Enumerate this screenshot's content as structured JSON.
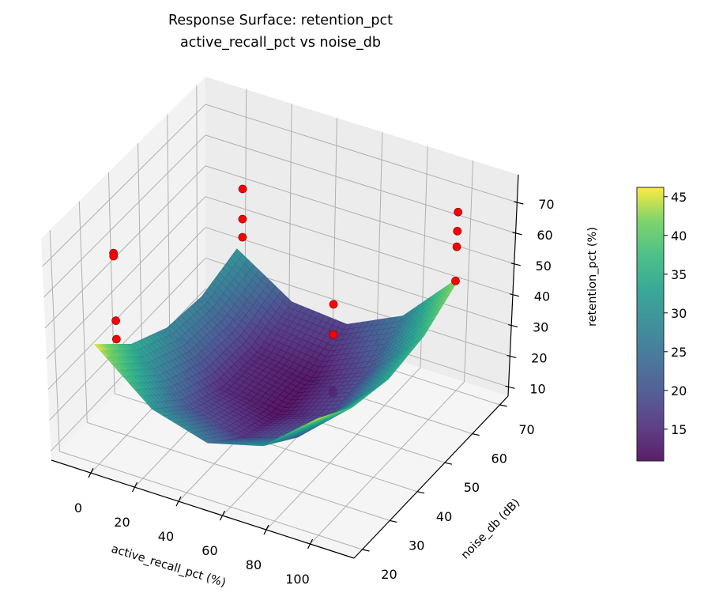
{
  "chart_data": {
    "type": "surface3d",
    "title": [
      "Response Surface: retention_pct",
      "active_recall_pct vs noise_db"
    ],
    "xlabel": "active_recall_pct (%)",
    "ylabel": "noise_db (dB)",
    "zlabel": "retention_pct (%)",
    "xlim": [
      -18,
      120
    ],
    "ylim": [
      17,
      73
    ],
    "zlim": [
      7,
      79
    ],
    "xticks": [
      0,
      20,
      40,
      60,
      80,
      100
    ],
    "yticks": [
      20,
      30,
      40,
      50,
      60,
      70
    ],
    "zticks": [
      10,
      20,
      30,
      40,
      50,
      60,
      70
    ],
    "grid": true,
    "colormap": "viridis",
    "surface": {
      "x": [
        0,
        25,
        50,
        75,
        100
      ],
      "y": [
        20,
        32.5,
        45,
        57.5,
        70
      ],
      "z": [
        [
          46.0,
          30.8,
          25.5,
          30.3,
          45.0
        ],
        [
          34.3,
          20.0,
          15.7,
          21.4,
          37.1
        ],
        [
          27.8,
          14.4,
          11.0,
          17.6,
          34.3
        ],
        [
          26.3,
          13.9,
          11.4,
          19.0,
          36.6
        ],
        [
          30.0,
          18.5,
          17.0,
          25.5,
          44.0
        ]
      ]
    },
    "points": [
      {
        "x": 10,
        "y": 20,
        "z": 78
      },
      {
        "x": 10,
        "y": 20,
        "z": 77
      },
      {
        "x": 10,
        "y": 20,
        "z": 56
      },
      {
        "x": 10,
        "y": 20,
        "z": 50
      },
      {
        "x": 5,
        "y": 68,
        "z": 52.5
      },
      {
        "x": 5,
        "y": 68,
        "z": 42.7
      },
      {
        "x": 5,
        "y": 68,
        "z": 36.8
      },
      {
        "x": 75,
        "y": 45,
        "z": 52.8
      },
      {
        "x": 75,
        "y": 45,
        "z": 43
      },
      {
        "x": 75,
        "y": 45,
        "z": 24.7
      },
      {
        "x": 75,
        "y": 45,
        "z": 24
      },
      {
        "x": 98,
        "y": 70,
        "z": 64.6
      },
      {
        "x": 98,
        "y": 70,
        "z": 58.4
      },
      {
        "x": 98,
        "y": 70,
        "z": 53.3
      },
      {
        "x": 98,
        "y": 70,
        "z": 42.2
      }
    ],
    "point_color": "#ff0000",
    "colorbar": {
      "min": 10.9,
      "max": 46.2,
      "ticks": [
        15,
        20,
        25,
        30,
        35,
        40,
        45
      ]
    }
  }
}
